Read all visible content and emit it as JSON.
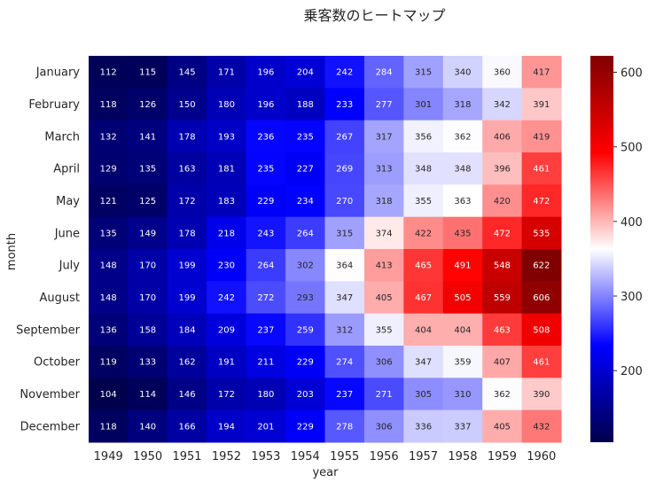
{
  "chart_data": {
    "type": "heatmap",
    "title": "乗客数のヒートマップ",
    "xlabel": "year",
    "ylabel": "month",
    "x_categories": [
      "1949",
      "1950",
      "1951",
      "1952",
      "1953",
      "1954",
      "1955",
      "1956",
      "1957",
      "1958",
      "1959",
      "1960"
    ],
    "y_categories": [
      "January",
      "February",
      "March",
      "April",
      "May",
      "June",
      "July",
      "August",
      "September",
      "October",
      "November",
      "December"
    ],
    "values": [
      [
        112,
        115,
        145,
        171,
        196,
        204,
        242,
        284,
        315,
        340,
        360,
        417
      ],
      [
        118,
        126,
        150,
        180,
        196,
        188,
        233,
        277,
        301,
        318,
        342,
        391
      ],
      [
        132,
        141,
        178,
        193,
        236,
        235,
        267,
        317,
        356,
        362,
        406,
        419
      ],
      [
        129,
        135,
        163,
        181,
        235,
        227,
        269,
        313,
        348,
        348,
        396,
        461
      ],
      [
        121,
        125,
        172,
        183,
        229,
        234,
        270,
        318,
        355,
        363,
        420,
        472
      ],
      [
        135,
        149,
        178,
        218,
        243,
        264,
        315,
        374,
        422,
        435,
        472,
        535
      ],
      [
        148,
        170,
        199,
        230,
        264,
        302,
        364,
        413,
        465,
        491,
        548,
        622
      ],
      [
        148,
        170,
        199,
        242,
        272,
        293,
        347,
        405,
        467,
        505,
        559,
        606
      ],
      [
        136,
        158,
        184,
        209,
        237,
        259,
        312,
        355,
        404,
        404,
        463,
        508
      ],
      [
        119,
        133,
        162,
        191,
        211,
        229,
        274,
        306,
        347,
        359,
        407,
        461
      ],
      [
        104,
        114,
        146,
        172,
        180,
        203,
        237,
        271,
        305,
        310,
        362,
        390
      ],
      [
        118,
        140,
        166,
        194,
        201,
        229,
        278,
        306,
        336,
        337,
        405,
        432
      ]
    ],
    "colormap": "seismic",
    "vmin": 104,
    "vmax": 622,
    "colorbar_ticks": [
      200,
      300,
      400,
      500,
      600
    ],
    "annotated": true
  }
}
